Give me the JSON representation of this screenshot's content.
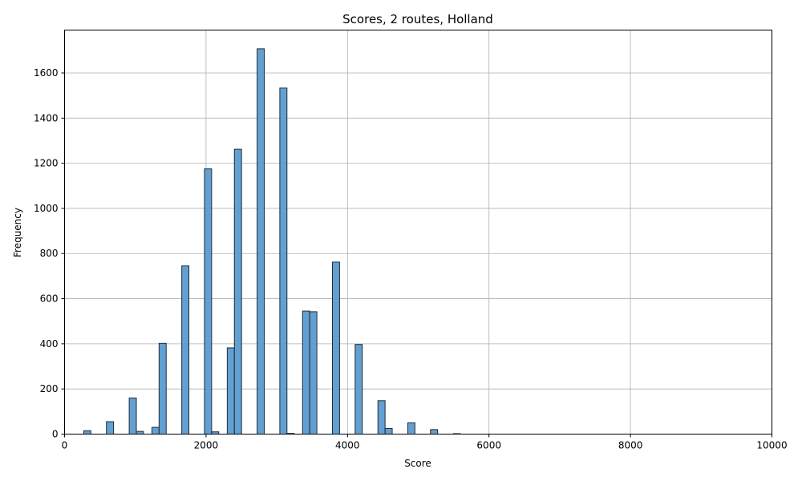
{
  "chart_data": {
    "type": "bar",
    "title": "Scores, 2 routes, Holland",
    "xlabel": "Score",
    "ylabel": "Frequency",
    "xlim": [
      0,
      10000
    ],
    "ylim": [
      0,
      1790
    ],
    "x_ticks": [
      0,
      2000,
      4000,
      6000,
      8000,
      10000
    ],
    "y_ticks": [
      0,
      200,
      400,
      600,
      800,
      1000,
      1200,
      1400,
      1600
    ],
    "grid": true,
    "bar_color": "#5b9bd0",
    "edge_color": "#1f2b36",
    "bins": [
      {
        "x0": 271,
        "x1": 372,
        "value": 15
      },
      {
        "x0": 592,
        "x1": 693,
        "value": 55
      },
      {
        "x0": 914,
        "x1": 1015,
        "value": 160
      },
      {
        "x0": 1015,
        "x1": 1116,
        "value": 12
      },
      {
        "x0": 1235,
        "x1": 1336,
        "value": 30
      },
      {
        "x0": 1336,
        "x1": 1437,
        "value": 402
      },
      {
        "x0": 1657,
        "x1": 1758,
        "value": 745
      },
      {
        "x0": 1978,
        "x1": 2079,
        "value": 1175
      },
      {
        "x0": 2079,
        "x1": 2180,
        "value": 10
      },
      {
        "x0": 2300,
        "x1": 2401,
        "value": 382
      },
      {
        "x0": 2401,
        "x1": 2502,
        "value": 1262
      },
      {
        "x0": 2722,
        "x1": 2823,
        "value": 1707
      },
      {
        "x0": 3043,
        "x1": 3144,
        "value": 1533
      },
      {
        "x0": 3144,
        "x1": 3245,
        "value": 3
      },
      {
        "x0": 3365,
        "x1": 3466,
        "value": 545
      },
      {
        "x0": 3466,
        "x1": 3567,
        "value": 542
      },
      {
        "x0": 3787,
        "x1": 3888,
        "value": 762
      },
      {
        "x0": 4108,
        "x1": 4209,
        "value": 397
      },
      {
        "x0": 4430,
        "x1": 4531,
        "value": 148
      },
      {
        "x0": 4531,
        "x1": 4632,
        "value": 25
      },
      {
        "x0": 4852,
        "x1": 4953,
        "value": 50
      },
      {
        "x0": 5173,
        "x1": 5274,
        "value": 20
      },
      {
        "x0": 5495,
        "x1": 5596,
        "value": 2
      }
    ]
  }
}
